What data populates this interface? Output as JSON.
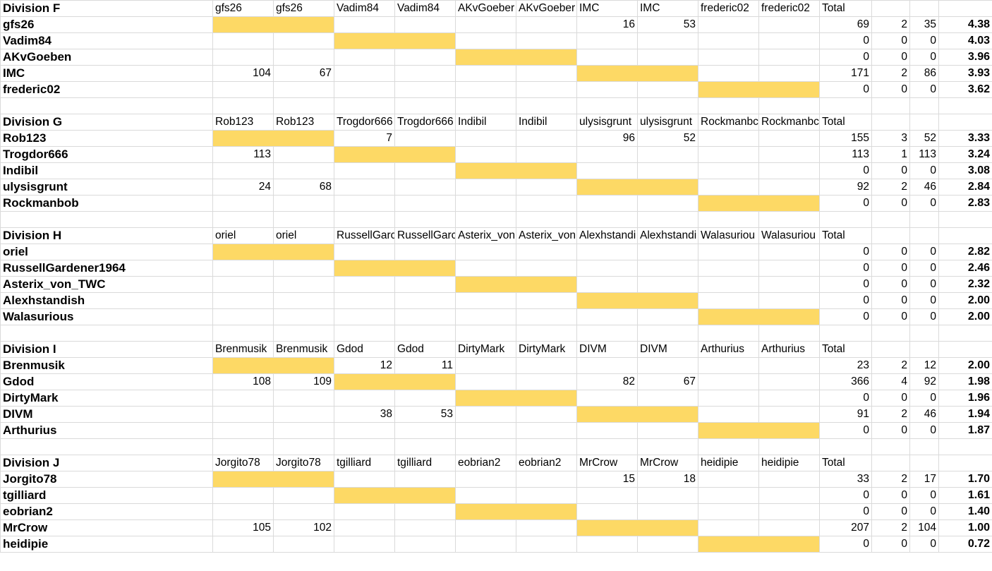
{
  "divisions": [
    {
      "title": "Division F",
      "headers": [
        "gfs26",
        "gfs26",
        "Vadim84",
        "Vadim84",
        "AKvGoeber",
        "AKvGoeber",
        "IMC",
        "IMC",
        "frederic02",
        "frederic02"
      ],
      "total_label": "Total",
      "rows": [
        {
          "name": "gfs26",
          "cells": [
            null,
            null,
            null,
            null,
            null,
            null,
            16,
            53,
            null,
            null
          ],
          "total": 69,
          "games": 2,
          "avg": 35,
          "rating": "4.38"
        },
        {
          "name": "Vadim84",
          "cells": [
            null,
            null,
            null,
            null,
            null,
            null,
            null,
            null,
            null,
            null
          ],
          "total": 0,
          "games": 0,
          "avg": 0,
          "rating": "4.03"
        },
        {
          "name": "AKvGoeben",
          "cells": [
            null,
            null,
            null,
            null,
            null,
            null,
            null,
            null,
            null,
            null
          ],
          "total": 0,
          "games": 0,
          "avg": 0,
          "rating": "3.96"
        },
        {
          "name": "IMC",
          "cells": [
            104,
            67,
            null,
            null,
            null,
            null,
            null,
            null,
            null,
            null
          ],
          "total": 171,
          "games": 2,
          "avg": 86,
          "rating": "3.93"
        },
        {
          "name": "frederic02",
          "cells": [
            null,
            null,
            null,
            null,
            null,
            null,
            null,
            null,
            null,
            null
          ],
          "total": 0,
          "games": 0,
          "avg": 0,
          "rating": "3.62"
        }
      ]
    },
    {
      "title": "Division G",
      "headers": [
        "Rob123",
        "Rob123",
        "Trogdor666",
        "Trogdor666",
        "Indibil",
        "Indibil",
        "ulysisgrunt",
        "ulysisgrunt",
        "Rockmanbc",
        "Rockmanbc"
      ],
      "total_label": "Total",
      "rows": [
        {
          "name": "Rob123",
          "cells": [
            null,
            null,
            7,
            null,
            null,
            null,
            96,
            52,
            null,
            null
          ],
          "total": 155,
          "games": 3,
          "avg": 52,
          "rating": "3.33"
        },
        {
          "name": "Trogdor666",
          "cells": [
            113,
            null,
            null,
            null,
            null,
            null,
            null,
            null,
            null,
            null
          ],
          "total": 113,
          "games": 1,
          "avg": 113,
          "rating": "3.24"
        },
        {
          "name": "Indibil",
          "cells": [
            null,
            null,
            null,
            null,
            null,
            null,
            null,
            null,
            null,
            null
          ],
          "total": 0,
          "games": 0,
          "avg": 0,
          "rating": "3.08"
        },
        {
          "name": "ulysisgrunt",
          "cells": [
            24,
            68,
            null,
            null,
            null,
            null,
            null,
            null,
            null,
            null
          ],
          "total": 92,
          "games": 2,
          "avg": 46,
          "rating": "2.84"
        },
        {
          "name": "Rockmanbob",
          "cells": [
            null,
            null,
            null,
            null,
            null,
            null,
            null,
            null,
            null,
            null
          ],
          "total": 0,
          "games": 0,
          "avg": 0,
          "rating": "2.83"
        }
      ]
    },
    {
      "title": "Division H",
      "headers": [
        "oriel",
        "oriel",
        "RussellGarc",
        "RussellGarc",
        "Asterix_von",
        "Asterix_von",
        "Alexhstandi",
        "Alexhstandi",
        "Walasuriou",
        "Walasuriou"
      ],
      "total_label": "Total",
      "rows": [
        {
          "name": "oriel",
          "cells": [
            null,
            null,
            null,
            null,
            null,
            null,
            null,
            null,
            null,
            null
          ],
          "total": 0,
          "games": 0,
          "avg": 0,
          "rating": "2.82"
        },
        {
          "name": "RussellGardener1964",
          "cells": [
            null,
            null,
            null,
            null,
            null,
            null,
            null,
            null,
            null,
            null
          ],
          "total": 0,
          "games": 0,
          "avg": 0,
          "rating": "2.46"
        },
        {
          "name": "Asterix_von_TWC",
          "cells": [
            null,
            null,
            null,
            null,
            null,
            null,
            null,
            null,
            null,
            null
          ],
          "total": 0,
          "games": 0,
          "avg": 0,
          "rating": "2.32"
        },
        {
          "name": "Alexhstandish",
          "cells": [
            null,
            null,
            null,
            null,
            null,
            null,
            null,
            null,
            null,
            null
          ],
          "total": 0,
          "games": 0,
          "avg": 0,
          "rating": "2.00"
        },
        {
          "name": "Walasurious",
          "cells": [
            null,
            null,
            null,
            null,
            null,
            null,
            null,
            null,
            null,
            null
          ],
          "total": 0,
          "games": 0,
          "avg": 0,
          "rating": "2.00"
        }
      ]
    },
    {
      "title": "Division I",
      "headers": [
        "Brenmusik",
        "Brenmusik",
        "Gdod",
        "Gdod",
        "DirtyMark",
        "DirtyMark",
        "DIVM",
        "DIVM",
        "Arthurius",
        "Arthurius"
      ],
      "total_label": "Total",
      "rows": [
        {
          "name": "Brenmusik",
          "cells": [
            null,
            null,
            12,
            11,
            null,
            null,
            null,
            null,
            null,
            null
          ],
          "total": 23,
          "games": 2,
          "avg": 12,
          "rating": "2.00"
        },
        {
          "name": "Gdod",
          "cells": [
            108,
            109,
            null,
            null,
            null,
            null,
            82,
            67,
            null,
            null
          ],
          "total": 366,
          "games": 4,
          "avg": 92,
          "rating": "1.98"
        },
        {
          "name": "DirtyMark",
          "cells": [
            null,
            null,
            null,
            null,
            null,
            null,
            null,
            null,
            null,
            null
          ],
          "total": 0,
          "games": 0,
          "avg": 0,
          "rating": "1.96"
        },
        {
          "name": "DIVM",
          "cells": [
            null,
            null,
            38,
            53,
            null,
            null,
            null,
            null,
            null,
            null
          ],
          "total": 91,
          "games": 2,
          "avg": 46,
          "rating": "1.94"
        },
        {
          "name": "Arthurius",
          "cells": [
            null,
            null,
            null,
            null,
            null,
            null,
            null,
            null,
            null,
            null
          ],
          "total": 0,
          "games": 0,
          "avg": 0,
          "rating": "1.87"
        }
      ]
    },
    {
      "title": "Division J",
      "headers": [
        "Jorgito78",
        "Jorgito78",
        "tgilliard",
        "tgilliard",
        "eobrian2",
        "eobrian2",
        "MrCrow",
        "MrCrow",
        "heidipie",
        "heidipie"
      ],
      "total_label": "Total",
      "rows": [
        {
          "name": "Jorgito78",
          "cells": [
            null,
            null,
            null,
            null,
            null,
            null,
            15,
            18,
            null,
            null
          ],
          "total": 33,
          "games": 2,
          "avg": 17,
          "rating": "1.70"
        },
        {
          "name": "tgilliard",
          "cells": [
            null,
            null,
            null,
            null,
            null,
            null,
            null,
            null,
            null,
            null
          ],
          "total": 0,
          "games": 0,
          "avg": 0,
          "rating": "1.61"
        },
        {
          "name": "eobrian2",
          "cells": [
            null,
            null,
            null,
            null,
            null,
            null,
            null,
            null,
            null,
            null
          ],
          "total": 0,
          "games": 0,
          "avg": 0,
          "rating": "1.40"
        },
        {
          "name": "MrCrow",
          "cells": [
            105,
            102,
            null,
            null,
            null,
            null,
            null,
            null,
            null,
            null
          ],
          "total": 207,
          "games": 2,
          "avg": 104,
          "rating": "1.00"
        },
        {
          "name": "heidipie",
          "cells": [
            null,
            null,
            null,
            null,
            null,
            null,
            null,
            null,
            null,
            null
          ],
          "total": 0,
          "games": 0,
          "avg": 0,
          "rating": "0.72"
        }
      ]
    }
  ]
}
